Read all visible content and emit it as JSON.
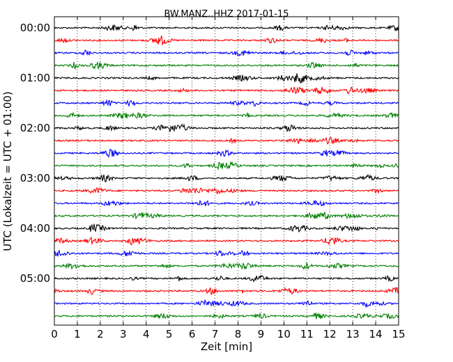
{
  "chart_data": {
    "type": "line",
    "title": "BW.MANZ..HHZ 2017-01-15",
    "xlabel": "Zeit  [min]",
    "ylabel": "UTC (Lokalzeit = UTC + 01:00)",
    "xlim": [
      0,
      15
    ],
    "x_ticks": [
      "0",
      "1",
      "2",
      "3",
      "4",
      "5",
      "6",
      "7",
      "8",
      "9",
      "10",
      "11",
      "12",
      "13",
      "14",
      "15"
    ],
    "y_tick_labels": [
      "00:00",
      "01:00",
      "02:00",
      "03:00",
      "04:00",
      "05:00"
    ],
    "grid": "vertical dotted",
    "trace_colors": [
      "#000000",
      "#ff0000",
      "#0000ff",
      "#008000"
    ],
    "traces": [
      {
        "start": "00:00"
      },
      {
        "start": "00:15"
      },
      {
        "start": "00:30"
      },
      {
        "start": "00:45"
      },
      {
        "start": "01:00"
      },
      {
        "start": "01:15"
      },
      {
        "start": "01:30"
      },
      {
        "start": "01:45"
      },
      {
        "start": "02:00"
      },
      {
        "start": "02:15"
      },
      {
        "start": "02:30"
      },
      {
        "start": "02:45"
      },
      {
        "start": "03:00"
      },
      {
        "start": "03:15"
      },
      {
        "start": "03:30"
      },
      {
        "start": "03:45"
      },
      {
        "start": "04:00"
      },
      {
        "start": "04:15"
      },
      {
        "start": "04:30"
      },
      {
        "start": "04:45"
      },
      {
        "start": "05:00"
      },
      {
        "start": "05:15"
      },
      {
        "start": "05:30"
      },
      {
        "start": "05:45"
      }
    ]
  }
}
